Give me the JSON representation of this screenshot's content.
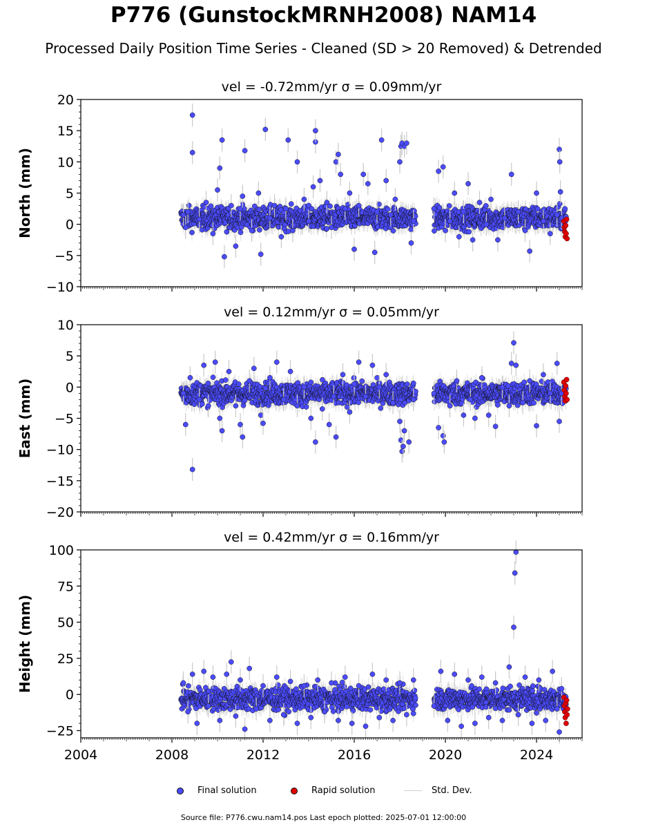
{
  "title": "P776 (GunstockMRNH2008) NAM14",
  "subtitle": "Processed Daily Position Time Series - Cleaned (SD > 20 Removed) & Detrended",
  "legend": {
    "final": "Final solution",
    "rapid": "Rapid solution",
    "stddev": "Std. Dev."
  },
  "footer": "Source file: P776.cwu.nam14.pos  Last epoch plotted: 2025-07-01 12:00:00",
  "colors": {
    "final": "#4b4bff",
    "rapid": "#e00000",
    "stddev": "#c8c8c8",
    "outline": "#111111"
  },
  "chart_data": [
    {
      "type": "scatter",
      "ylabel": "North (mm)",
      "vel_text": "vel = -0.72mm/yr   σ = 0.09mm/yr",
      "xlim": [
        2004,
        2026
      ],
      "ylim": [
        -10,
        20
      ],
      "yticks": [
        -10,
        -5,
        0,
        5,
        10,
        15,
        20
      ],
      "data_span": [
        2008.4,
        2025.3
      ],
      "gap": [
        2018.7,
        2019.5
      ],
      "final_points": [
        [
          2008.5,
          1.5
        ],
        [
          2008.6,
          -0.5
        ],
        [
          2008.7,
          2.0
        ],
        [
          2008.9,
          17.5
        ],
        [
          2008.9,
          11.5
        ],
        [
          2009.2,
          0.8
        ],
        [
          2009.5,
          3.5
        ],
        [
          2009.8,
          -1.5
        ],
        [
          2010.0,
          5.5
        ],
        [
          2010.1,
          9.0
        ],
        [
          2010.2,
          13.5
        ],
        [
          2010.3,
          -5.2
        ],
        [
          2010.6,
          3.0
        ],
        [
          2010.8,
          -3.5
        ],
        [
          2011.0,
          2.5
        ],
        [
          2011.1,
          4.5
        ],
        [
          2011.2,
          11.8
        ],
        [
          2011.5,
          -1.0
        ],
        [
          2011.8,
          5.0
        ],
        [
          2011.9,
          -4.8
        ],
        [
          2012.1,
          15.2
        ],
        [
          2012.3,
          1.0
        ],
        [
          2012.5,
          3.0
        ],
        [
          2012.8,
          -2.0
        ],
        [
          2013.0,
          2.5
        ],
        [
          2013.1,
          13.5
        ],
        [
          2013.3,
          -1.0
        ],
        [
          2013.5,
          10.0
        ],
        [
          2013.8,
          4.0
        ],
        [
          2014.0,
          0.5
        ],
        [
          2014.2,
          6.0
        ],
        [
          2014.3,
          13.2
        ],
        [
          2014.3,
          15.0
        ],
        [
          2014.5,
          7.0
        ],
        [
          2014.8,
          3.5
        ],
        [
          2015.0,
          -0.5
        ],
        [
          2015.2,
          10.0
        ],
        [
          2015.3,
          11.2
        ],
        [
          2015.4,
          8.0
        ],
        [
          2015.6,
          2.5
        ],
        [
          2015.8,
          5.0
        ],
        [
          2016.0,
          -4.0
        ],
        [
          2016.2,
          3.0
        ],
        [
          2016.4,
          8.0
        ],
        [
          2016.6,
          6.5
        ],
        [
          2016.9,
          -4.5
        ],
        [
          2017.0,
          2.0
        ],
        [
          2017.2,
          13.5
        ],
        [
          2017.4,
          7.0
        ],
        [
          2017.6,
          1.5
        ],
        [
          2017.8,
          4.0
        ],
        [
          2018.0,
          10.0
        ],
        [
          2018.05,
          12.5
        ],
        [
          2018.1,
          13.0
        ],
        [
          2018.2,
          12.5
        ],
        [
          2018.3,
          13.0
        ],
        [
          2018.5,
          -3.0
        ],
        [
          2018.6,
          0.5
        ],
        [
          2019.5,
          2.5
        ],
        [
          2019.7,
          8.5
        ],
        [
          2019.9,
          9.2
        ],
        [
          2020.0,
          -1.0
        ],
        [
          2020.2,
          0.5
        ],
        [
          2020.4,
          5.0
        ],
        [
          2020.6,
          -2.0
        ],
        [
          2020.8,
          2.0
        ],
        [
          2021.0,
          6.5
        ],
        [
          2021.2,
          -2.5
        ],
        [
          2021.5,
          3.5
        ],
        [
          2021.8,
          0.0
        ],
        [
          2022.0,
          4.0
        ],
        [
          2022.3,
          -2.5
        ],
        [
          2022.6,
          1.0
        ],
        [
          2022.9,
          8.0
        ],
        [
          2023.2,
          2.0
        ],
        [
          2023.5,
          -1.0
        ],
        [
          2023.7,
          -4.3
        ],
        [
          2024.0,
          5.0
        ],
        [
          2024.3,
          0.5
        ],
        [
          2024.6,
          -1.5
        ],
        [
          2024.9,
          1.5
        ],
        [
          2025.0,
          12.0
        ],
        [
          2025.02,
          10.0
        ],
        [
          2025.05,
          5.2
        ],
        [
          2025.1,
          1.0
        ]
      ],
      "rapid_points": [
        [
          2025.2,
          0.5
        ],
        [
          2025.22,
          -0.5
        ],
        [
          2025.24,
          -1.2
        ],
        [
          2025.26,
          -2.0
        ],
        [
          2025.28,
          -0.2
        ],
        [
          2025.3,
          -1.5
        ],
        [
          2025.32,
          0.8
        ],
        [
          2025.34,
          -2.3
        ]
      ],
      "band": {
        "center": 1.0,
        "spread": 2.3
      }
    },
    {
      "type": "scatter",
      "ylabel": "East (mm)",
      "vel_text": "vel = 0.12mm/yr   σ = 0.05mm/yr",
      "xlim": [
        2004,
        2026
      ],
      "ylim": [
        -20,
        10
      ],
      "yticks": [
        -20,
        -15,
        -10,
        -5,
        0,
        5,
        10
      ],
      "data_span": [
        2008.4,
        2025.3
      ],
      "gap": [
        2018.7,
        2019.5
      ],
      "final_points": [
        [
          2008.5,
          -1.0
        ],
        [
          2008.6,
          -6.0
        ],
        [
          2008.8,
          1.5
        ],
        [
          2008.9,
          -13.2
        ],
        [
          2009.2,
          -2.0
        ],
        [
          2009.4,
          3.5
        ],
        [
          2009.6,
          -3.0
        ],
        [
          2009.9,
          4.0
        ],
        [
          2010.1,
          -5.0
        ],
        [
          2010.2,
          -7.0
        ],
        [
          2010.5,
          2.5
        ],
        [
          2010.8,
          -3.0
        ],
        [
          2011.0,
          -6.0
        ],
        [
          2011.1,
          -8.0
        ],
        [
          2011.4,
          1.0
        ],
        [
          2011.6,
          3.0
        ],
        [
          2011.9,
          -4.5
        ],
        [
          2012.0,
          -5.8
        ],
        [
          2012.3,
          1.5
        ],
        [
          2012.6,
          4.0
        ],
        [
          2012.9,
          -2.0
        ],
        [
          2013.2,
          2.5
        ],
        [
          2013.5,
          -3.0
        ],
        [
          2013.8,
          0.0
        ],
        [
          2014.1,
          -5.0
        ],
        [
          2014.3,
          -8.8
        ],
        [
          2014.6,
          -3.5
        ],
        [
          2014.9,
          -6.0
        ],
        [
          2015.1,
          -1.5
        ],
        [
          2015.2,
          -8.0
        ],
        [
          2015.5,
          2.0
        ],
        [
          2015.8,
          -4.0
        ],
        [
          2016.0,
          0.5
        ],
        [
          2016.2,
          4.0
        ],
        [
          2016.5,
          -1.5
        ],
        [
          2016.8,
          3.5
        ],
        [
          2017.1,
          0.0
        ],
        [
          2017.4,
          2.0
        ],
        [
          2017.7,
          -2.5
        ],
        [
          2018.0,
          -5.5
        ],
        [
          2018.05,
          -8.5
        ],
        [
          2018.1,
          -10.3
        ],
        [
          2018.15,
          -9.5
        ],
        [
          2018.2,
          -7.0
        ],
        [
          2018.4,
          -8.8
        ],
        [
          2018.6,
          -2.0
        ],
        [
          2019.5,
          -1.0
        ],
        [
          2019.7,
          -6.5
        ],
        [
          2019.9,
          -7.8
        ],
        [
          2019.95,
          -8.8
        ],
        [
          2020.2,
          -3.0
        ],
        [
          2020.5,
          1.0
        ],
        [
          2020.8,
          -4.5
        ],
        [
          2021.1,
          -2.0
        ],
        [
          2021.3,
          -5.0
        ],
        [
          2021.6,
          1.5
        ],
        [
          2021.9,
          -4.5
        ],
        [
          2022.2,
          -6.3
        ],
        [
          2022.5,
          0.0
        ],
        [
          2022.8,
          -3.0
        ],
        [
          2022.9,
          3.8
        ],
        [
          2023.0,
          7.1
        ],
        [
          2023.1,
          3.5
        ],
        [
          2023.4,
          -2.5
        ],
        [
          2023.7,
          1.0
        ],
        [
          2024.0,
          -6.2
        ],
        [
          2024.3,
          2.0
        ],
        [
          2024.6,
          -1.0
        ],
        [
          2024.9,
          3.8
        ],
        [
          2025.0,
          -5.5
        ],
        [
          2025.1,
          -1.0
        ]
      ],
      "rapid_points": [
        [
          2025.2,
          0.8
        ],
        [
          2025.22,
          -0.5
        ],
        [
          2025.24,
          -1.5
        ],
        [
          2025.26,
          -2.2
        ],
        [
          2025.28,
          0.2
        ],
        [
          2025.3,
          -1.0
        ],
        [
          2025.32,
          1.2
        ],
        [
          2025.34,
          -2.0
        ]
      ],
      "band": {
        "center": -1.0,
        "spread": 2.3
      }
    },
    {
      "type": "scatter",
      "ylabel": "Height (mm)",
      "vel_text": "vel = 0.42mm/yr   σ = 0.16mm/yr",
      "xlim": [
        2004,
        2026
      ],
      "ylim": [
        -30,
        100
      ],
      "yticks": [
        -25,
        0,
        25,
        50,
        75,
        100
      ],
      "data_span": [
        2008.4,
        2025.3
      ],
      "gap": [
        2018.7,
        2019.5
      ],
      "final_points": [
        [
          2008.5,
          8.0
        ],
        [
          2008.7,
          -12.0
        ],
        [
          2008.9,
          14.0
        ],
        [
          2009.1,
          -20.0
        ],
        [
          2009.4,
          16.0
        ],
        [
          2009.6,
          -8.0
        ],
        [
          2009.8,
          12.0
        ],
        [
          2010.1,
          -18.0
        ],
        [
          2010.4,
          14.0
        ],
        [
          2010.6,
          22.5
        ],
        [
          2010.8,
          -15.0
        ],
        [
          2011.0,
          10.0
        ],
        [
          2011.2,
          -24.0
        ],
        [
          2011.4,
          18.0
        ],
        [
          2011.7,
          -10.0
        ],
        [
          2012.0,
          6.0
        ],
        [
          2012.3,
          -18.0
        ],
        [
          2012.6,
          12.0
        ],
        [
          2012.9,
          -14.0
        ],
        [
          2013.2,
          9.0
        ],
        [
          2013.5,
          -20.0
        ],
        [
          2013.8,
          6.0
        ],
        [
          2014.1,
          -16.0
        ],
        [
          2014.4,
          10.0
        ],
        [
          2014.7,
          -12.0
        ],
        [
          2015.0,
          8.0
        ],
        [
          2015.3,
          -18.0
        ],
        [
          2015.6,
          12.0
        ],
        [
          2015.9,
          -20.0
        ],
        [
          2016.2,
          6.0
        ],
        [
          2016.5,
          -22.0
        ],
        [
          2016.8,
          14.0
        ],
        [
          2017.1,
          -16.0
        ],
        [
          2017.4,
          10.0
        ],
        [
          2017.7,
          -18.0
        ],
        [
          2018.0,
          8.0
        ],
        [
          2018.3,
          -14.0
        ],
        [
          2018.6,
          10.0
        ],
        [
          2019.5,
          -8.0
        ],
        [
          2019.8,
          16.0
        ],
        [
          2020.1,
          -18.0
        ],
        [
          2020.4,
          14.0
        ],
        [
          2020.7,
          -22.0
        ],
        [
          2021.0,
          10.0
        ],
        [
          2021.3,
          -20.0
        ],
        [
          2021.6,
          12.0
        ],
        [
          2021.9,
          -16.0
        ],
        [
          2022.2,
          8.0
        ],
        [
          2022.5,
          -18.0
        ],
        [
          2022.8,
          19.0
        ],
        [
          2023.0,
          46.5
        ],
        [
          2023.05,
          84.0
        ],
        [
          2023.1,
          98.5
        ],
        [
          2023.2,
          -14.0
        ],
        [
          2023.5,
          12.0
        ],
        [
          2023.8,
          -20.0
        ],
        [
          2024.1,
          10.0
        ],
        [
          2024.4,
          -18.0
        ],
        [
          2024.7,
          16.0
        ],
        [
          2024.9,
          -10.0
        ],
        [
          2025.0,
          -26.0
        ],
        [
          2025.1,
          4.0
        ]
      ],
      "rapid_points": [
        [
          2025.2,
          -2.0
        ],
        [
          2025.22,
          -8.0
        ],
        [
          2025.24,
          -12.0
        ],
        [
          2025.26,
          -16.0
        ],
        [
          2025.28,
          -6.0
        ],
        [
          2025.3,
          -20.0
        ],
        [
          2025.32,
          -4.0
        ],
        [
          2025.34,
          -14.0
        ],
        [
          2025.36,
          -10.0
        ]
      ],
      "band": {
        "center": -3.0,
        "spread": 10.0
      }
    }
  ],
  "xticks": [
    "2004",
    "2008",
    "2012",
    "2016",
    "2020",
    "2024"
  ]
}
